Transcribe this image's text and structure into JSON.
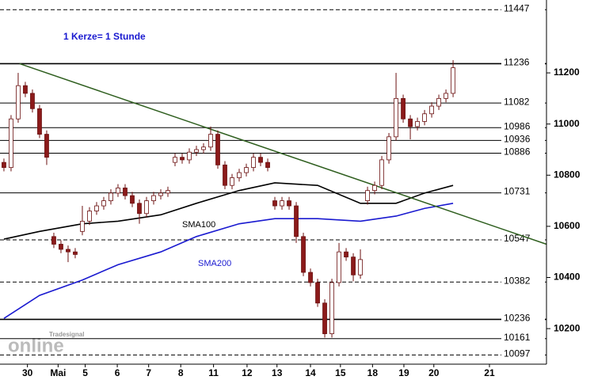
{
  "chart_data": {
    "type": "candlestick",
    "annotation": "1 Kerze= 1 Stunde",
    "watermark": [
      "Tradesignal",
      "online"
    ],
    "up_color": "#ffffff",
    "down_color": "#8b1a1a",
    "edge_color": "#6b1010",
    "xlim": [
      -0.55,
      76.1
    ],
    "ylim": [
      10061,
      11485
    ],
    "yticks": [
      10200,
      10400,
      10600,
      10800,
      11000,
      11200
    ],
    "xticks": [
      {
        "value": 3.3,
        "label": "30"
      },
      {
        "value": 7.6,
        "label": "Mai"
      },
      {
        "value": 11.4,
        "label": "5"
      },
      {
        "value": 15.9,
        "label": "6"
      },
      {
        "value": 20.3,
        "label": "7"
      },
      {
        "value": 24.8,
        "label": "8"
      },
      {
        "value": 29.4,
        "label": "11"
      },
      {
        "value": 34.1,
        "label": "12"
      },
      {
        "value": 38.3,
        "label": "13"
      },
      {
        "value": 43,
        "label": "14"
      },
      {
        "value": 47.2,
        "label": "15"
      },
      {
        "value": 51.7,
        "label": "18"
      },
      {
        "value": 56.1,
        "label": "19"
      },
      {
        "value": 60.3,
        "label": "20"
      },
      {
        "value": 68.1,
        "label": "21"
      }
    ],
    "levels": [
      {
        "value": 11447,
        "style": "dashed"
      },
      {
        "value": 11236,
        "style": "thick"
      },
      {
        "value": 11082,
        "style": "solid"
      },
      {
        "value": 10986,
        "style": "solid"
      },
      {
        "value": 10936,
        "style": "solid"
      },
      {
        "value": 10886,
        "style": "solid"
      },
      {
        "value": 10731,
        "style": "solid"
      },
      {
        "value": 10547,
        "style": "dashed"
      },
      {
        "value": 10382,
        "style": "dashed"
      },
      {
        "value": 10236,
        "style": "thick"
      },
      {
        "value": 10161,
        "style": "solid"
      },
      {
        "value": 10097,
        "style": "dashed"
      }
    ],
    "x": [
      0,
      1,
      2,
      3,
      4,
      5,
      6,
      7,
      8,
      9,
      10,
      11,
      12,
      13,
      14,
      15,
      16,
      17,
      18,
      19,
      20,
      21,
      22,
      23,
      24,
      25,
      26,
      27,
      28,
      29,
      30,
      31,
      32,
      33,
      34,
      35,
      36,
      37,
      38,
      39,
      40,
      41,
      42,
      43,
      44,
      45,
      46,
      47,
      48,
      49,
      50,
      51,
      52,
      53,
      54,
      55,
      56,
      57,
      58,
      59,
      60,
      61,
      62,
      63
    ],
    "open": [
      10850,
      10830,
      11020,
      11150,
      11120,
      11060,
      10960,
      10560,
      10530,
      10510,
      10500,
      10580,
      10620,
      10660,
      10680,
      10700,
      10730,
      10750,
      10720,
      10690,
      10650,
      10700,
      10720,
      10730,
      10850,
      10870,
      10860,
      10890,
      10900,
      10910,
      10960,
      10840,
      10760,
      10790,
      10810,
      10830,
      10870,
      10850,
      10700,
      10680,
      10700,
      10680,
      10560,
      10420,
      10380,
      10300,
      10180,
      10380,
      10500,
      10480,
      10410,
      10700,
      10740,
      10760,
      10860,
      10950,
      11100,
      11020,
      10990,
      11010,
      11040,
      11070,
      11100,
      11120
    ],
    "high": [
      10865,
      11035,
      11200,
      11165,
      11135,
      11075,
      10975,
      10575,
      10545,
      10525,
      10515,
      10680,
      10675,
      10695,
      10715,
      10745,
      10765,
      10765,
      10735,
      10705,
      10715,
      10735,
      10745,
      10755,
      10885,
      10885,
      10905,
      10915,
      10925,
      10990,
      10975,
      10855,
      10805,
      10825,
      10845,
      10885,
      10885,
      10865,
      10715,
      10715,
      10715,
      10695,
      10575,
      10435,
      10395,
      10315,
      10395,
      10535,
      10515,
      10495,
      10510,
      10755,
      10775,
      10875,
      10965,
      11200,
      11115,
      11035,
      11025,
      11055,
      11085,
      11115,
      11135,
      11250
    ],
    "low": [
      10815,
      10815,
      11005,
      11105,
      11045,
      10945,
      10840,
      10515,
      10495,
      10460,
      10475,
      10565,
      10605,
      10645,
      10665,
      10685,
      10715,
      10705,
      10675,
      10610,
      10635,
      10685,
      10705,
      10715,
      10835,
      10845,
      10845,
      10875,
      10885,
      10895,
      10825,
      10745,
      10745,
      10775,
      10795,
      10815,
      10835,
      10815,
      10665,
      10665,
      10665,
      10535,
      10405,
      10365,
      10285,
      10165,
      10165,
      10365,
      10465,
      10385,
      10395,
      10685,
      10725,
      10745,
      10845,
      10935,
      11005,
      10940,
      10975,
      10995,
      11025,
      11055,
      11085,
      11105
    ],
    "close": [
      10830,
      11020,
      11150,
      11120,
      11060,
      10960,
      10870,
      10530,
      10510,
      10500,
      10490,
      10620,
      10660,
      10680,
      10700,
      10730,
      10750,
      10720,
      10690,
      10650,
      10700,
      10720,
      10730,
      10740,
      10870,
      10860,
      10890,
      10900,
      10910,
      10960,
      10840,
      10760,
      10790,
      10810,
      10830,
      10870,
      10850,
      10830,
      10680,
      10700,
      10680,
      10560,
      10420,
      10380,
      10300,
      10180,
      10380,
      10500,
      10480,
      10410,
      10470,
      10740,
      10760,
      10860,
      10950,
      11100,
      11020,
      10990,
      11010,
      11040,
      11070,
      11100,
      11120,
      11220
    ],
    "lines": [
      {
        "name": "SMA100",
        "color": "#000000",
        "x": [
          0,
          5,
          11,
          16,
          22,
          27,
          33,
          38,
          44,
          50,
          55,
          59,
          63
        ],
        "values": [
          10550,
          10580,
          10610,
          10620,
          10645,
          10690,
          10740,
          10770,
          10760,
          10690,
          10690,
          10730,
          10760
        ]
      },
      {
        "name": "SMA200",
        "color": "#1a1ad0",
        "x": [
          0,
          5,
          11,
          16,
          22,
          27,
          33,
          38,
          44,
          50,
          55,
          59,
          63
        ],
        "values": [
          10240,
          10330,
          10390,
          10450,
          10500,
          10560,
          10610,
          10630,
          10630,
          10620,
          10640,
          10670,
          10690
        ]
      },
      {
        "color": "#2e5e1e",
        "x": [
          2.2,
          76.1
        ],
        "values": [
          11236,
          10530
        ]
      }
    ]
  }
}
